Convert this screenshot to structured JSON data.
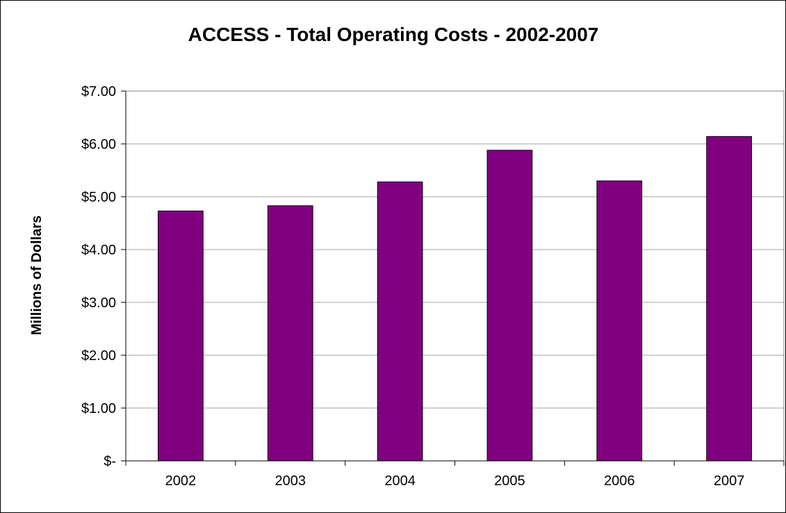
{
  "chart_data": {
    "type": "bar",
    "title": "ACCESS - Total Operating Costs - 2002-2007",
    "xlabel": "",
    "ylabel": "Millions of Dollars",
    "categories": [
      "2002",
      "2003",
      "2004",
      "2005",
      "2006",
      "2007"
    ],
    "values": [
      4.73,
      4.83,
      5.28,
      5.88,
      5.3,
      6.14
    ],
    "ylim": [
      0,
      7
    ],
    "yticks": [
      0,
      1,
      2,
      3,
      4,
      5,
      6,
      7
    ],
    "ytick_labels": [
      "$-",
      "$1.00",
      "$2.00",
      "$3.00",
      "$4.00",
      "$5.00",
      "$6.00",
      "$7.00"
    ],
    "grid": true,
    "legend": "none",
    "colors": {
      "bar": "#800080",
      "bar_border": "#000000",
      "grid": "#a0a0a0",
      "plot_border": "#808080"
    }
  }
}
